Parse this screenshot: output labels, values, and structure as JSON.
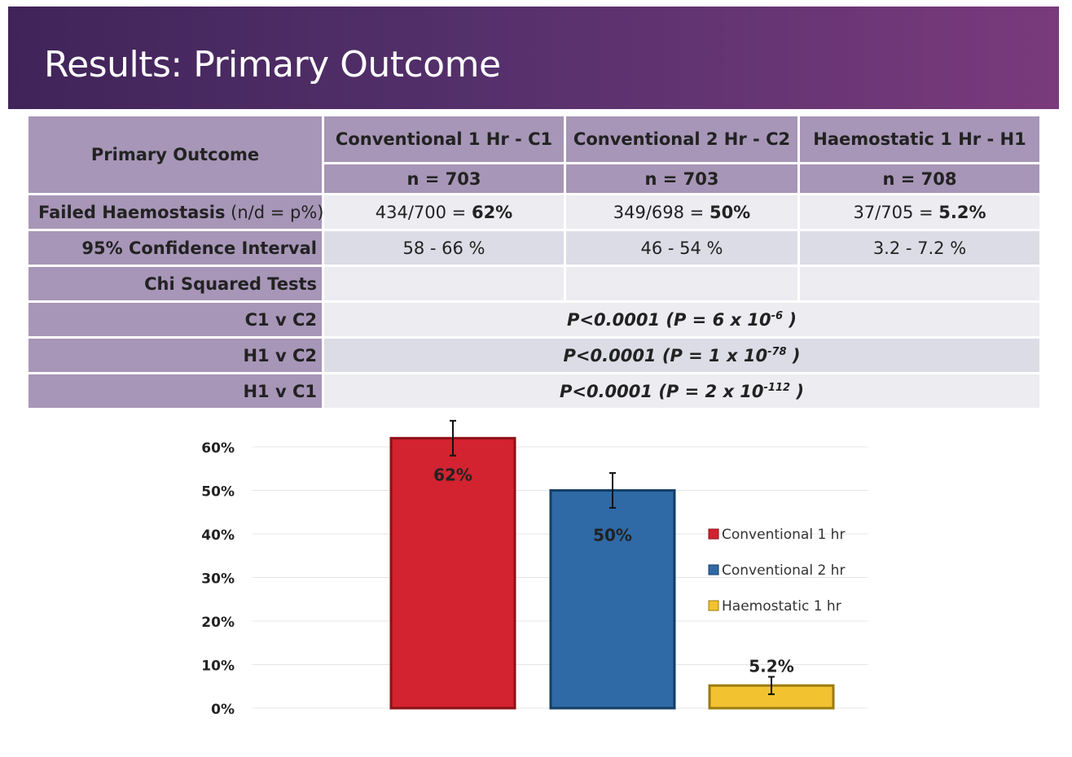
{
  "title": "Results: Primary Outcome",
  "table": {
    "header_label": "Primary Outcome",
    "columns": [
      {
        "name": "Conventional 1 Hr - C1",
        "n": "n = 703"
      },
      {
        "name": "Conventional 2 Hr - C2",
        "n": "n = 703"
      },
      {
        "name": "Haemostatic 1 Hr - H1",
        "n": "n = 708"
      }
    ],
    "failed": {
      "label_bold": "Failed Haemostasis",
      "label_normal": " (n/d = p%)",
      "cells": [
        {
          "prefix": "434/700 = ",
          "bold": "62%"
        },
        {
          "prefix": "349/698 = ",
          "bold": "50%"
        },
        {
          "prefix": "37/705 = ",
          "bold": "5.2%"
        }
      ]
    },
    "ci": {
      "label": "95% Confidence Interval",
      "cells": [
        "58 - 66 %",
        "46 - 54 %",
        "3.2 - 7.2 %"
      ]
    },
    "chi_label": "Chi Squared Tests",
    "tests": [
      {
        "label": "C1 v C2",
        "p": "P<0.0001  (P = 6 x 10",
        "exp": "-6",
        "close": " )"
      },
      {
        "label": "H1 v C2",
        "p": "P<0.0001  (P = 1 x 10",
        "exp": "-78",
        "close": " )"
      },
      {
        "label": "H1 v C1",
        "p": "P<0.0001  (P = 2 x 10",
        "exp": "-112",
        "close": " )"
      }
    ]
  },
  "chart_data": {
    "type": "bar",
    "categories": [
      "Conventional 1 hr",
      "Conventional 2 hr",
      "Haemostatic 1 hr"
    ],
    "values": [
      62,
      50,
      5.2
    ],
    "labels": [
      "62%",
      "50%",
      "5.2%"
    ],
    "error_low": [
      58,
      46,
      3.2
    ],
    "error_high": [
      66,
      54,
      7.2
    ],
    "colors": [
      "#d32230",
      "#2f6aa6",
      "#f2c230"
    ],
    "ylim": [
      0,
      60
    ],
    "yticks": [
      0,
      10,
      20,
      30,
      40,
      50,
      60
    ],
    "ytick_labels": [
      "0%",
      "10%",
      "20%",
      "30%",
      "40%",
      "50%",
      "60%"
    ],
    "legend": [
      "Conventional 1 hr",
      "Conventional 2 hr",
      "Haemostatic 1 hr"
    ],
    "legend_position": "right",
    "grid": true
  }
}
